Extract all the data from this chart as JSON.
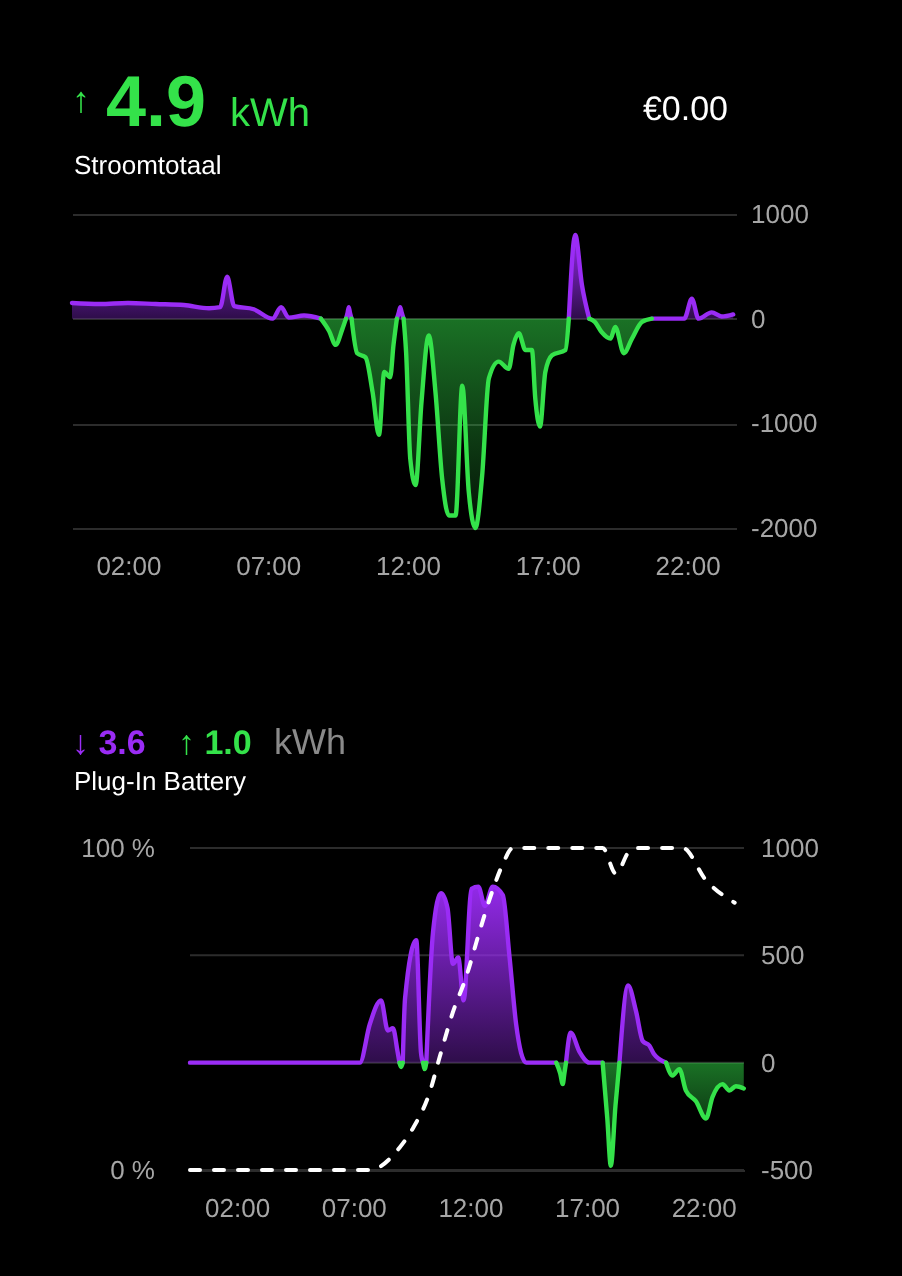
{
  "chart_data": [
    {
      "type": "area",
      "title": "Stroomtotaal",
      "annotations": [
        "↑",
        "4.9",
        "kWh",
        "€0.00"
      ],
      "xlim": [
        0,
        23.75
      ],
      "xticks": [
        {
          "value": 2,
          "label": "02:00"
        },
        {
          "value": 7,
          "label": "07:00"
        },
        {
          "value": 12,
          "label": "12:00"
        },
        {
          "value": 17,
          "label": "17:00"
        },
        {
          "value": 22,
          "label": "22:00"
        }
      ],
      "ylim": [
        -2000,
        1000
      ],
      "yticks": [
        -2000,
        -1000,
        0,
        1000
      ],
      "grid": "y",
      "series": [
        {
          "color": "#9a2cf5",
          "x": [
            0,
            1,
            2,
            3,
            4,
            4.9,
            5.3,
            5.55,
            5.8,
            6.5,
            7.17,
            7.48,
            7.75,
            8.3,
            8.9,
            9.3,
            9.8,
            9.86,
            9.9,
            9.94,
            10.0,
            10.8,
            11.62,
            11.69,
            11.74,
            11.79,
            11.86,
            14.8,
            17.77,
            18.0,
            18.24,
            18.5,
            19.6,
            20.74,
            21.9,
            22.17,
            22.41,
            22.88,
            23.24,
            23.65
          ],
          "values": [
            150,
            140,
            150,
            140,
            130,
            100,
            110,
            400,
            120,
            90,
            0,
            110,
            10,
            30,
            0,
            null,
            0,
            60,
            110,
            60,
            0,
            null,
            0,
            60,
            110,
            60,
            0,
            null,
            0,
            800,
            320,
            0,
            null,
            0,
            0,
            190,
            0,
            60,
            20,
            40
          ]
        },
        {
          "color": "#34e24a",
          "x": [
            8.9,
            9.2,
            9.43,
            9.67,
            9.8,
            9.9,
            10.0,
            10.2,
            10.5,
            10.75,
            10.98,
            11.17,
            11.38,
            11.5,
            11.62,
            11.74,
            11.86,
            11.95,
            12.1,
            12.29,
            12.5,
            12.76,
            13.0,
            13.24,
            13.48,
            13.72,
            13.96,
            14.19,
            14.43,
            14.67,
            14.91,
            15.26,
            15.62,
            15.79,
            15.98,
            16.22,
            16.45,
            16.57,
            16.74,
            16.93,
            17.17,
            17.65,
            17.77,
            18.0,
            18.5,
            18.7,
            18.95,
            19.26,
            19.43,
            19.74,
            20.03,
            20.39,
            20.74
          ],
          "values": [
            0,
            -120,
            -250,
            -100,
            0,
            null,
            0,
            -330,
            -370,
            -700,
            -1110,
            -510,
            -560,
            -250,
            0,
            null,
            0,
            -320,
            -1340,
            -1590,
            -800,
            -160,
            -700,
            -1530,
            -1880,
            -1880,
            -640,
            -1650,
            -2000,
            -1500,
            -570,
            -410,
            -480,
            -250,
            -140,
            -300,
            -300,
            -760,
            -1030,
            -510,
            -350,
            -300,
            0,
            null,
            0,
            -30,
            -130,
            -190,
            -80,
            -330,
            -190,
            -30,
            0
          ]
        }
      ]
    },
    {
      "type": "area",
      "title": "Plug-In Battery",
      "annotations": [
        "↓ 3.6",
        "↑ 1.0",
        "kWh"
      ],
      "xlim": [
        0,
        23.75
      ],
      "xticks": [
        {
          "value": 2,
          "label": "02:00"
        },
        {
          "value": 7,
          "label": "07:00"
        },
        {
          "value": 12,
          "label": "12:00"
        },
        {
          "value": 17,
          "label": "17:00"
        },
        {
          "value": 22,
          "label": "22:00"
        }
      ],
      "ylim": [
        0,
        100
      ],
      "yticks": [
        {
          "value": 0,
          "label": "0 %"
        },
        {
          "value": 100,
          "label": "100 %"
        }
      ],
      "y2lim": [
        -500,
        1000
      ],
      "y2ticks": [
        -500,
        0,
        500,
        1000
      ],
      "grid": "y",
      "series": [
        {
          "color": "#9a2cf5",
          "axis": "y2",
          "x": [
            0,
            7.28,
            7.71,
            8.19,
            8.48,
            8.7,
            8.9,
            8.98,
            9.05,
            9.12,
            9.22,
            9.7,
            9.9,
            9.99,
            10.06,
            10.13,
            10.42,
            10.76,
            11.04,
            11.27,
            11.5,
            11.73,
            12.07,
            12.36,
            12.64,
            12.98,
            13.41,
            13.7,
            13.98,
            14.41,
            15.7,
            15.9,
            16.12,
            16.32,
            16.7,
            17.12,
            17.69,
            18.0,
            18.41,
            18.78,
            19.12,
            19.41,
            19.69,
            19.89,
            20.41
          ],
          "values": [
            0,
            0,
            180,
            290,
            150,
            160,
            50,
            0,
            null,
            0,
            300,
            570,
            50,
            0,
            null,
            0,
            610,
            790,
            720,
            460,
            490,
            290,
            810,
            820,
            730,
            820,
            780,
            490,
            180,
            0,
            0,
            null,
            0,
            140,
            50,
            0,
            0,
            null,
            0,
            360,
            240,
            100,
            80,
            40,
            0
          ]
        },
        {
          "color": "#34e24a",
          "axis": "y2",
          "x": [
            8.98,
            9.05,
            9.12,
            9.5,
            9.99,
            10.03,
            10.06,
            10.13,
            13.0,
            15.7,
            15.87,
            15.98,
            16.05,
            16.12,
            17.0,
            17.69,
            17.89,
            18.04,
            18.24,
            18.41,
            19.5,
            20.41,
            20.69,
            20.98,
            21.26,
            21.69,
            22.12,
            22.4,
            22.83,
            23.12,
            23.4,
            23.74
          ],
          "values": [
            0,
            -20,
            0,
            null,
            0,
            -20,
            -30,
            0,
            null,
            0,
            -50,
            -100,
            -50,
            0,
            null,
            0,
            -260,
            -480,
            -200,
            0,
            null,
            0,
            -60,
            -30,
            -130,
            -180,
            -260,
            -160,
            -100,
            -130,
            -110,
            -120
          ]
        },
        {
          "type": "line",
          "color": "#ffffff",
          "line_style": "dashed",
          "x": [
            0,
            7.7,
            8.99,
            9.56,
            10.27,
            10.7,
            11.27,
            11.84,
            12.41,
            12.98,
            13.41,
            13.84,
            17.69,
            18.26,
            18.84,
            19.26,
            21.12,
            22.12,
            23.35
          ],
          "values": [
            0,
            0,
            7,
            13,
            24,
            35,
            49,
            60,
            74,
            87,
            95,
            100,
            100,
            92,
            99,
            100,
            100,
            90,
            83
          ]
        }
      ]
    }
  ]
}
